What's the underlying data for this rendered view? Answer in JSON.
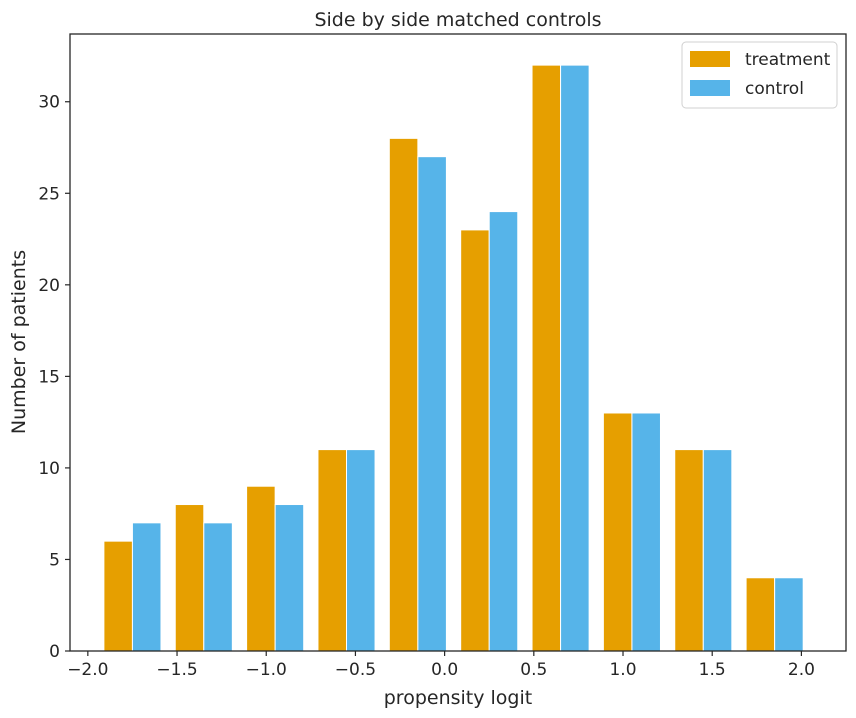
{
  "chart_data": {
    "type": "bar",
    "title": "Side by side matched controls",
    "xlabel": "propensity logit",
    "ylabel": "Number of patients",
    "bin_centers": [
      -1.75,
      -1.35,
      -0.95,
      -0.55,
      -0.15,
      0.25,
      0.65,
      1.05,
      1.45,
      1.85
    ],
    "series": [
      {
        "name": "treatment",
        "color": "#E69F00",
        "values": [
          6,
          8,
          9,
          11,
          28,
          23,
          32,
          13,
          11,
          4
        ]
      },
      {
        "name": "control",
        "color": "#56B4E9",
        "values": [
          7,
          7,
          8,
          11,
          27,
          24,
          32,
          13,
          11,
          4
        ]
      }
    ],
    "xlim": [
      -2.1,
      2.25
    ],
    "ylim": [
      0,
      33.7
    ],
    "xticks": [
      -2.0,
      -1.5,
      -1.0,
      -0.5,
      0.0,
      0.5,
      1.0,
      1.5,
      2.0
    ],
    "xtick_labels": [
      "−2.0",
      "−1.5",
      "−1.0",
      "−0.5",
      "0.0",
      "0.5",
      "1.0",
      "1.5",
      "2.0"
    ],
    "yticks": [
      0,
      5,
      10,
      15,
      20,
      25,
      30
    ],
    "ytick_labels": [
      "0",
      "5",
      "10",
      "15",
      "20",
      "25",
      "30"
    ],
    "grid": false,
    "legend_position": "top-right"
  }
}
